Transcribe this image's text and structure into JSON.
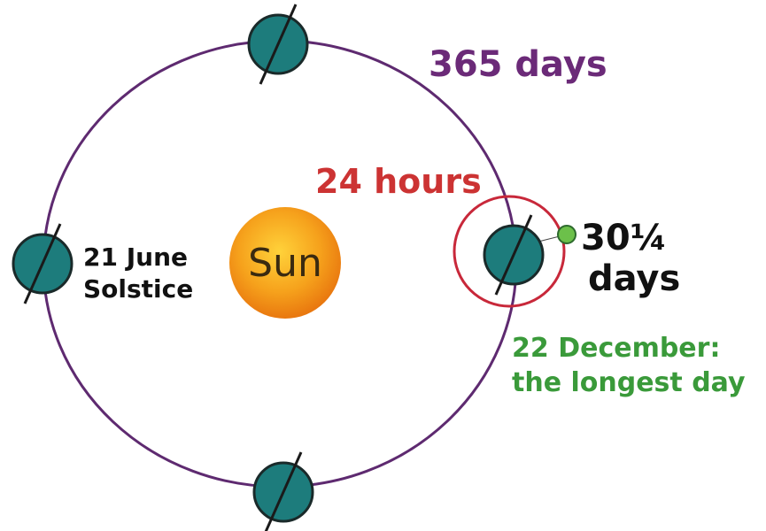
{
  "labels": {
    "orbit_period": "365 days",
    "rotation_period": "24 hours",
    "sun": "Sun",
    "june": [
      "21 June",
      "Solstice"
    ],
    "moon_period": [
      "30¼",
      "days"
    ],
    "december": [
      "22 December:",
      "the longest day"
    ]
  }
}
